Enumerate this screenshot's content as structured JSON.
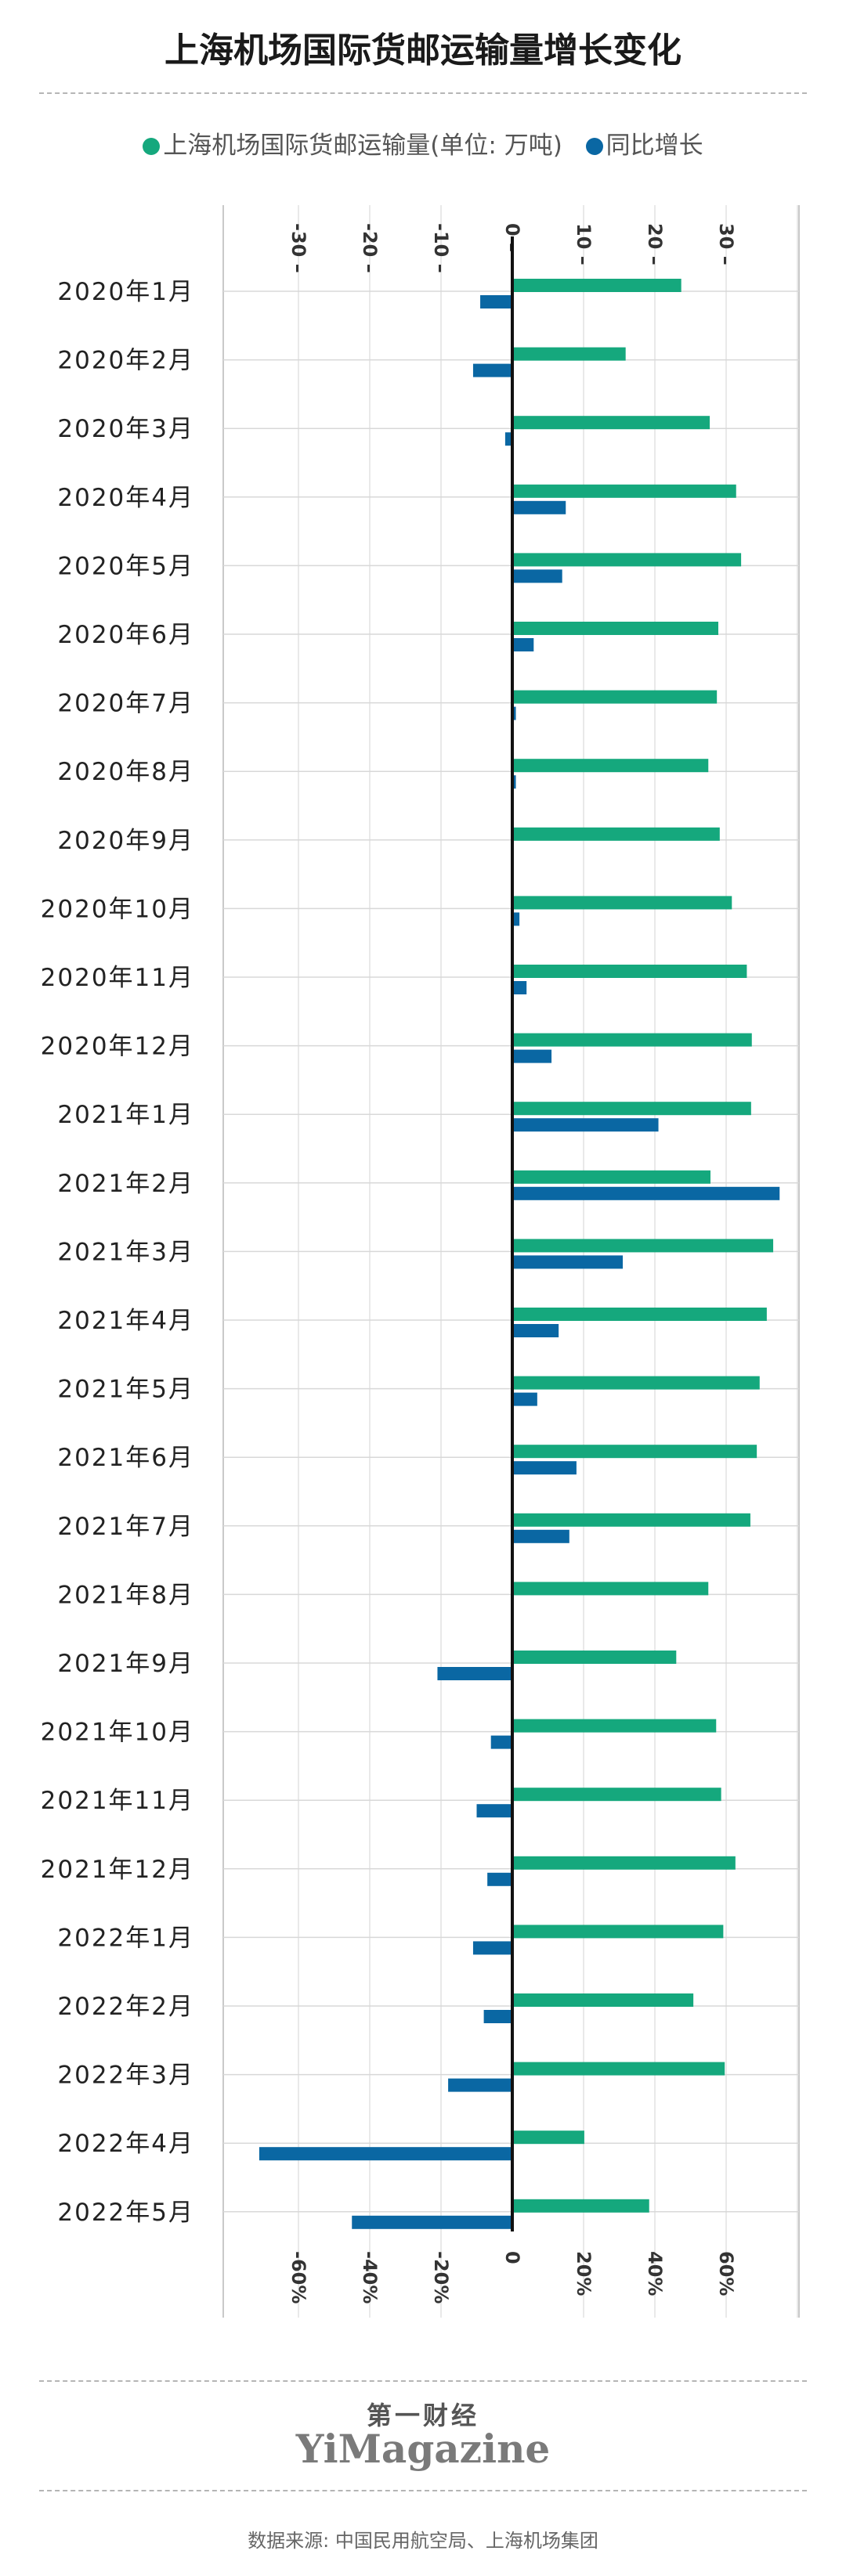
{
  "title": "上海机场国际货邮运输量增长变化",
  "legend": [
    {
      "label": "上海机场国际货邮运输量(单位: 万吨)",
      "color": "#15a87d"
    },
    {
      "label": "同比增长",
      "color": "#0a67a3"
    }
  ],
  "brand": {
    "cn": "第一财经",
    "en": "YiMagazine"
  },
  "source": "数据来源: 中国民用航空局、上海机场集团",
  "chart_data": {
    "type": "bar",
    "orientation": "horizontal",
    "categories": [
      "2020年1月",
      "2020年2月",
      "2020年3月",
      "2020年4月",
      "2020年5月",
      "2020年6月",
      "2020年7月",
      "2020年8月",
      "2020年9月",
      "2020年10月",
      "2020年11月",
      "2020年12月",
      "2021年1月",
      "2021年2月",
      "2021年3月",
      "2021年4月",
      "2021年5月",
      "2021年6月",
      "2021年7月",
      "2021年8月",
      "2021年9月",
      "2021年10月",
      "2021年11月",
      "2021年12月",
      "2022年1月",
      "2022年2月",
      "2022年3月",
      "2022年4月",
      "2022年5月"
    ],
    "series": [
      {
        "name": "上海机场国际货邮运输量(单位: 万吨)",
        "axis": "top",
        "values": [
          23.7,
          15.9,
          27.7,
          31.4,
          32.1,
          28.9,
          28.7,
          27.5,
          29.1,
          30.8,
          32.9,
          33.6,
          33.5,
          27.8,
          36.6,
          35.7,
          34.7,
          34.3,
          33.4,
          27.5,
          23.0,
          28.6,
          29.3,
          31.3,
          29.6,
          25.4,
          29.8,
          10.1,
          19.2
        ]
      },
      {
        "name": "同比增长",
        "axis": "bottom",
        "unit": "%",
        "values": [
          -9,
          -11,
          -2,
          15,
          14,
          6,
          1,
          1,
          0,
          2,
          4,
          11,
          41,
          75,
          31,
          13,
          7,
          18,
          16,
          0,
          -21,
          -6,
          -10,
          -7,
          -11,
          -8,
          -18,
          -71,
          -45
        ]
      }
    ],
    "top_axis": {
      "min": -40,
      "max": 40,
      "ticks": [
        -30,
        -20,
        -10,
        0,
        10,
        20,
        30
      ]
    },
    "bottom_axis": {
      "min": -80,
      "max": 80,
      "ticks": [
        -60,
        -40,
        -20,
        0,
        20,
        40,
        60
      ],
      "tick_labels": [
        "-60%",
        "-40%",
        "-20%",
        "0",
        "20%",
        "40%",
        "60%"
      ]
    },
    "grid": true,
    "legend_position": "top"
  }
}
